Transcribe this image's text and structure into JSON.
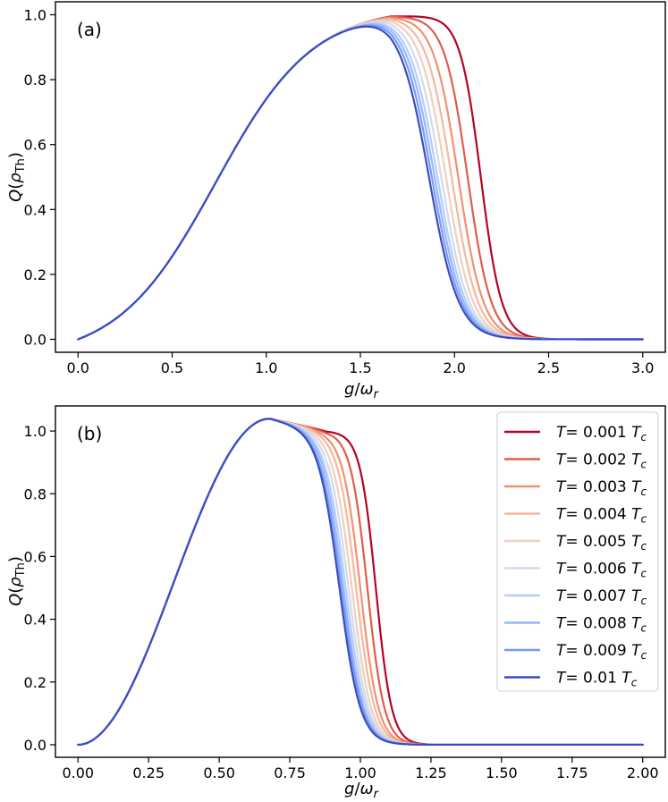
{
  "chart_data": [
    {
      "type": "line",
      "panel": "(a)",
      "xlabel": "g/ω_r",
      "ylabel": "Q(ρ_Th)",
      "xlim": [
        -0.12,
        3.12
      ],
      "ylim": [
        -0.04,
        1.04
      ],
      "xticks": [
        "0.0",
        "0.5",
        "1.0",
        "1.5",
        "2.0",
        "2.5",
        "3.0"
      ],
      "yticks": [
        "0.0",
        "0.2",
        "0.4",
        "0.6",
        "0.8",
        "1.0"
      ],
      "xtick_values": [
        0.0,
        0.5,
        1.0,
        1.5,
        2.0,
        2.5,
        3.0
      ],
      "ytick_values": [
        0.0,
        0.2,
        0.4,
        0.6,
        0.8,
        1.0
      ],
      "rise": {
        "center": 0.73,
        "width": 0.26,
        "saturation_x": 1.66
      },
      "series": [
        {
          "name": "T=0.001 T_c",
          "color": "#b40426",
          "drop_center": 2.14,
          "drop_width": 0.055
        },
        {
          "name": "T=0.002 T_c",
          "color": "#dd5f4b",
          "drop_center": 2.07,
          "drop_width": 0.062
        },
        {
          "name": "T=0.003 T_c",
          "color": "#f29072",
          "drop_center": 2.02,
          "drop_width": 0.066
        },
        {
          "name": "T=0.004 T_c",
          "color": "#f5b79e",
          "drop_center": 1.985,
          "drop_width": 0.069
        },
        {
          "name": "T=0.005 T_c",
          "color": "#efcfbf",
          "drop_center": 1.955,
          "drop_width": 0.071
        },
        {
          "name": "T=0.006 T_c",
          "color": "#d2dbe8",
          "drop_center": 1.93,
          "drop_width": 0.073
        },
        {
          "name": "T=0.007 T_c",
          "color": "#b5cdfa",
          "drop_center": 1.91,
          "drop_width": 0.075
        },
        {
          "name": "T=0.008 T_c",
          "color": "#96b7ff",
          "drop_center": 1.895,
          "drop_width": 0.076
        },
        {
          "name": "T=0.009 T_c",
          "color": "#779af7",
          "drop_center": 1.88,
          "drop_width": 0.077
        },
        {
          "name": "T=0.01 T_c",
          "color": "#3b4cc0",
          "drop_center": 1.865,
          "drop_width": 0.078
        }
      ]
    },
    {
      "type": "line",
      "panel": "(b)",
      "xlabel": "g/ω_r",
      "ylabel": "Q(ρ_Th)",
      "xlim": [
        -0.08,
        2.08
      ],
      "ylim": [
        -0.04,
        1.08
      ],
      "xticks": [
        "0.00",
        "0.25",
        "0.50",
        "0.75",
        "1.00",
        "1.25",
        "1.50",
        "1.75",
        "2.00"
      ],
      "yticks": [
        "0.0",
        "0.2",
        "0.4",
        "0.6",
        "0.8",
        "1.0"
      ],
      "xtick_values": [
        0.0,
        0.25,
        0.5,
        0.75,
        1.0,
        1.25,
        1.5,
        1.75,
        2.0
      ],
      "ytick_values": [
        0.0,
        0.2,
        0.4,
        0.6,
        0.8,
        1.0
      ],
      "peak": {
        "x": 0.68,
        "y": 1.04
      },
      "series": [
        {
          "name": "T=0.001 T_c",
          "color": "#b40426",
          "drop_center": 1.055,
          "drop_width": 0.028
        },
        {
          "name": "T=0.002 T_c",
          "color": "#dd5f4b",
          "drop_center": 1.025,
          "drop_width": 0.03
        },
        {
          "name": "T=0.003 T_c",
          "color": "#f29072",
          "drop_center": 1.0,
          "drop_width": 0.032
        },
        {
          "name": "T=0.004 T_c",
          "color": "#f5b79e",
          "drop_center": 0.985,
          "drop_width": 0.033
        },
        {
          "name": "T=0.005 T_c",
          "color": "#efcfbf",
          "drop_center": 0.97,
          "drop_width": 0.034
        },
        {
          "name": "T=0.006 T_c",
          "color": "#d2dbe8",
          "drop_center": 0.958,
          "drop_width": 0.035
        },
        {
          "name": "T=0.007 T_c",
          "color": "#b5cdfa",
          "drop_center": 0.948,
          "drop_width": 0.036
        },
        {
          "name": "T=0.008 T_c",
          "color": "#96b7ff",
          "drop_center": 0.94,
          "drop_width": 0.036
        },
        {
          "name": "T=0.009 T_c",
          "color": "#779af7",
          "drop_center": 0.933,
          "drop_width": 0.037
        },
        {
          "name": "T=0.01 T_c",
          "color": "#3b4cc0",
          "drop_center": 0.926,
          "drop_width": 0.037
        }
      ],
      "legend": {
        "placement": "top-right",
        "entries": [
          {
            "prefix": "T",
            "value": "= 0.001",
            "unit": "T",
            "sub": "c"
          },
          {
            "prefix": "T",
            "value": "= 0.002",
            "unit": "T",
            "sub": "c"
          },
          {
            "prefix": "T",
            "value": "= 0.003",
            "unit": "T",
            "sub": "c"
          },
          {
            "prefix": "T",
            "value": "= 0.004",
            "unit": "T",
            "sub": "c"
          },
          {
            "prefix": "T",
            "value": "= 0.005",
            "unit": "T",
            "sub": "c"
          },
          {
            "prefix": "T",
            "value": "= 0.006",
            "unit": "T",
            "sub": "c"
          },
          {
            "prefix": "T",
            "value": "= 0.007",
            "unit": "T",
            "sub": "c"
          },
          {
            "prefix": "T",
            "value": "= 0.008",
            "unit": "T",
            "sub": "c"
          },
          {
            "prefix": "T",
            "value": "= 0.009",
            "unit": "T",
            "sub": "c"
          },
          {
            "prefix": "T",
            "value": "= 0.01",
            "unit": "T",
            "sub": "c"
          }
        ]
      }
    }
  ],
  "labels": {
    "panel_a": "(a)",
    "panel_b": "(b)",
    "x_main": "g",
    "x_slash": "/",
    "x_omega": "ω",
    "x_sub": "r",
    "y_main": "Q",
    "y_paren_open": "(",
    "y_rho": "ρ",
    "y_sub": "Th",
    "y_paren_close": ")"
  }
}
